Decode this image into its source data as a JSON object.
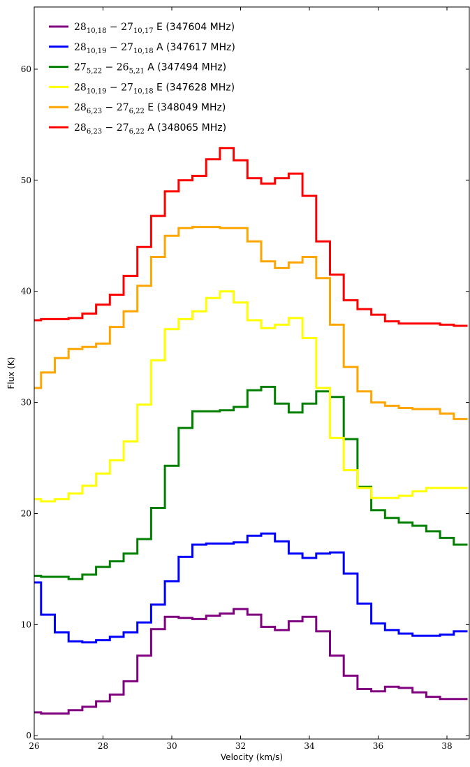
{
  "chart_data": {
    "type": "line",
    "step": true,
    "xlabel": "Velocity (km/s)",
    "ylabel": "Flux (K)",
    "xlim": [
      26,
      38.65
    ],
    "ylim": [
      -0.3,
      65.6
    ],
    "xticks": [
      26,
      28,
      30,
      32,
      34,
      36,
      38
    ],
    "yticks": [
      0,
      10,
      20,
      30,
      40,
      50,
      60
    ],
    "grid": false,
    "legend_position": "top-left",
    "x": [
      26.0,
      26.4,
      26.8,
      27.2,
      27.6,
      28.0,
      28.4,
      28.8,
      29.2,
      29.6,
      30.0,
      30.4,
      30.8,
      31.2,
      31.6,
      32.0,
      32.4,
      32.8,
      33.2,
      33.6,
      34.0,
      34.4,
      34.8,
      35.2,
      35.6,
      36.0,
      36.4,
      36.8,
      37.2,
      37.6,
      38.0,
      38.4
    ],
    "series": [
      {
        "name": "28_{10,18} − 27_{10,17} E (347604 MHz)",
        "legend": {
          "upper": "28",
          "upper_sub": "10,18",
          "lower": "27",
          "lower_sub": "10,17",
          "sym": "E",
          "freq": "(347604 MHz)"
        },
        "color": "#800080",
        "values": [
          2.1,
          2.0,
          2.0,
          2.3,
          2.6,
          3.1,
          3.7,
          4.9,
          7.2,
          9.6,
          10.7,
          10.6,
          10.5,
          10.8,
          11.0,
          11.4,
          10.9,
          9.8,
          9.5,
          10.3,
          10.7,
          9.4,
          7.2,
          5.4,
          4.2,
          4.0,
          4.4,
          4.3,
          3.9,
          3.5,
          3.3,
          3.3
        ]
      },
      {
        "name": "28_{10,19} − 27_{10,18} A (347617 MHz)",
        "legend": {
          "upper": "28",
          "upper_sub": "10,19",
          "lower": "27",
          "lower_sub": "10,18",
          "sym": "A",
          "freq": "(347617 MHz)"
        },
        "color": "#0000ff",
        "values": [
          13.8,
          10.9,
          9.3,
          8.5,
          8.4,
          8.6,
          8.9,
          9.3,
          10.2,
          11.8,
          13.9,
          16.1,
          17.2,
          17.3,
          17.3,
          17.4,
          18.0,
          18.2,
          17.5,
          16.4,
          16.0,
          16.4,
          16.5,
          14.6,
          11.9,
          10.1,
          9.5,
          9.2,
          9.0,
          9.0,
          9.1,
          9.4
        ]
      },
      {
        "name": "27_{5,22} − 26_{5,21} A (347494 MHz)",
        "legend": {
          "upper": "27",
          "upper_sub": "5,22",
          "lower": "26",
          "lower_sub": "5,21",
          "sym": "A",
          "freq": "(347494 MHz)"
        },
        "color": "#008000",
        "values": [
          14.4,
          14.3,
          14.3,
          14.1,
          14.5,
          15.2,
          15.7,
          16.4,
          17.7,
          20.5,
          24.3,
          27.7,
          29.2,
          29.2,
          29.3,
          29.6,
          31.1,
          31.4,
          29.9,
          29.1,
          29.9,
          31.0,
          30.5,
          26.7,
          22.4,
          20.3,
          19.6,
          19.2,
          18.9,
          18.4,
          17.8,
          17.2
        ]
      },
      {
        "name": "28_{10,19} − 27_{10,18} E (347628 MHz)",
        "legend": {
          "upper": "28",
          "upper_sub": "10,19",
          "lower": "27",
          "lower_sub": "10,18",
          "sym": "E",
          "freq": "(347628 MHz)"
        },
        "color": "#ffff00",
        "values": [
          21.3,
          21.1,
          21.3,
          21.8,
          22.5,
          23.6,
          24.8,
          26.5,
          29.8,
          33.8,
          36.6,
          37.5,
          38.2,
          39.4,
          40.0,
          39.0,
          37.4,
          36.7,
          37.0,
          37.6,
          35.8,
          31.3,
          26.8,
          23.9,
          22.3,
          21.4,
          21.4,
          21.6,
          22.0,
          22.3,
          22.3,
          22.3
        ]
      },
      {
        "name": "28_{6,23} − 27_{6,22} E (348049 MHz)",
        "legend": {
          "upper": "28",
          "upper_sub": "6,23",
          "lower": "27",
          "lower_sub": "6,22",
          "sym": "E",
          "freq": "(348049 MHz)"
        },
        "color": "#ffa500",
        "values": [
          31.3,
          32.7,
          34.0,
          34.8,
          35.0,
          35.3,
          36.8,
          38.2,
          40.5,
          43.1,
          45.0,
          45.7,
          45.8,
          45.8,
          45.7,
          45.7,
          44.5,
          42.7,
          42.1,
          42.6,
          43.1,
          41.2,
          37.0,
          33.2,
          31.0,
          30.0,
          29.7,
          29.5,
          29.4,
          29.4,
          29.0,
          28.5
        ]
      },
      {
        "name": "28_{6,23} − 27_{6,22} A (348065 MHz)",
        "legend": {
          "upper": "28",
          "upper_sub": "6,23",
          "lower": "27",
          "lower_sub": "6,22",
          "sym": "A",
          "freq": "(348065 MHz)"
        },
        "color": "#ff0000",
        "values": [
          37.4,
          37.5,
          37.5,
          37.6,
          38.0,
          38.8,
          39.7,
          41.4,
          44.0,
          46.8,
          49.0,
          50.0,
          50.4,
          51.9,
          52.9,
          51.8,
          50.2,
          49.7,
          50.2,
          50.6,
          48.6,
          44.5,
          41.5,
          39.2,
          38.4,
          37.9,
          37.3,
          37.1,
          37.1,
          37.1,
          37.0,
          36.9
        ]
      }
    ]
  }
}
